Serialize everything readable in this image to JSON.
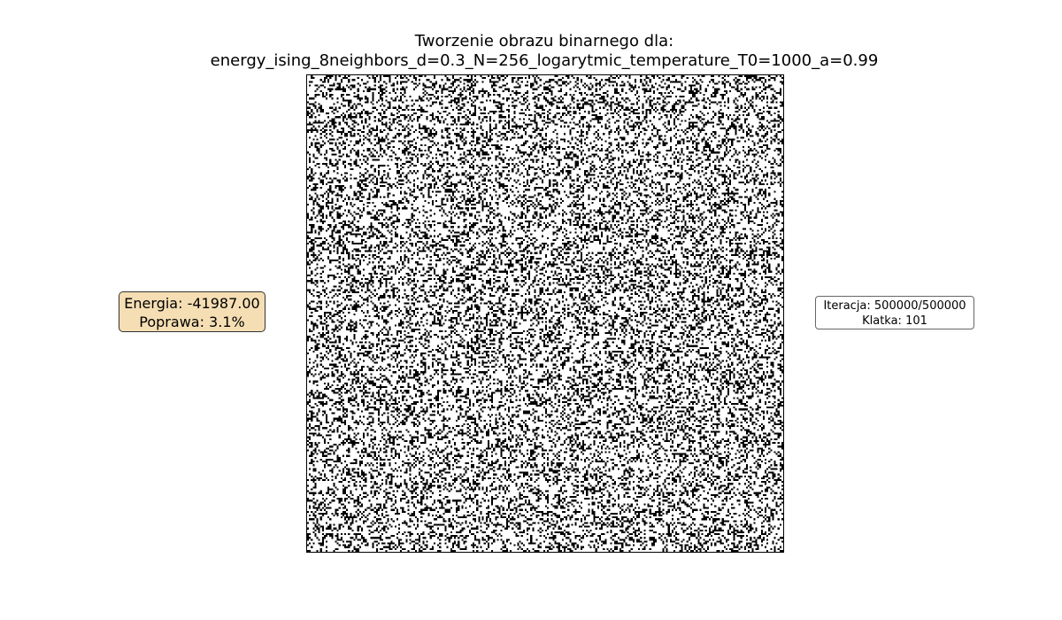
{
  "figure": {
    "title_line1": "Tworzenie obrazu binarnego dla:",
    "title_line2": "energy_ising_8neighbors_d=0.3_N=256_logarytmic_temperature_T0=1000_a=0.99"
  },
  "energy_box": {
    "energy_text": "Energia: -41987.00",
    "improvement_text": "Poprawa: 3.1%",
    "background_color": "#f5deb3"
  },
  "iteration_box": {
    "iteration_text": "Iteracja: 500000/500000",
    "frame_text": "Klatka: 101"
  },
  "chart_data": {
    "type": "heatmap",
    "title": "Tworzenie obrazu binarnego dla: energy_ising_8neighbors_d=0.3_N=256_logarytmic_temperature_T0=1000_a=0.99",
    "grid_size": 256,
    "black_density": 0.3,
    "colormap": [
      "#ffffff",
      "#000000"
    ],
    "energy": -41987.0,
    "improvement_percent": 3.1,
    "iteration": 500000,
    "iteration_total": 500000,
    "frame": 101,
    "axes_visible": false
  }
}
